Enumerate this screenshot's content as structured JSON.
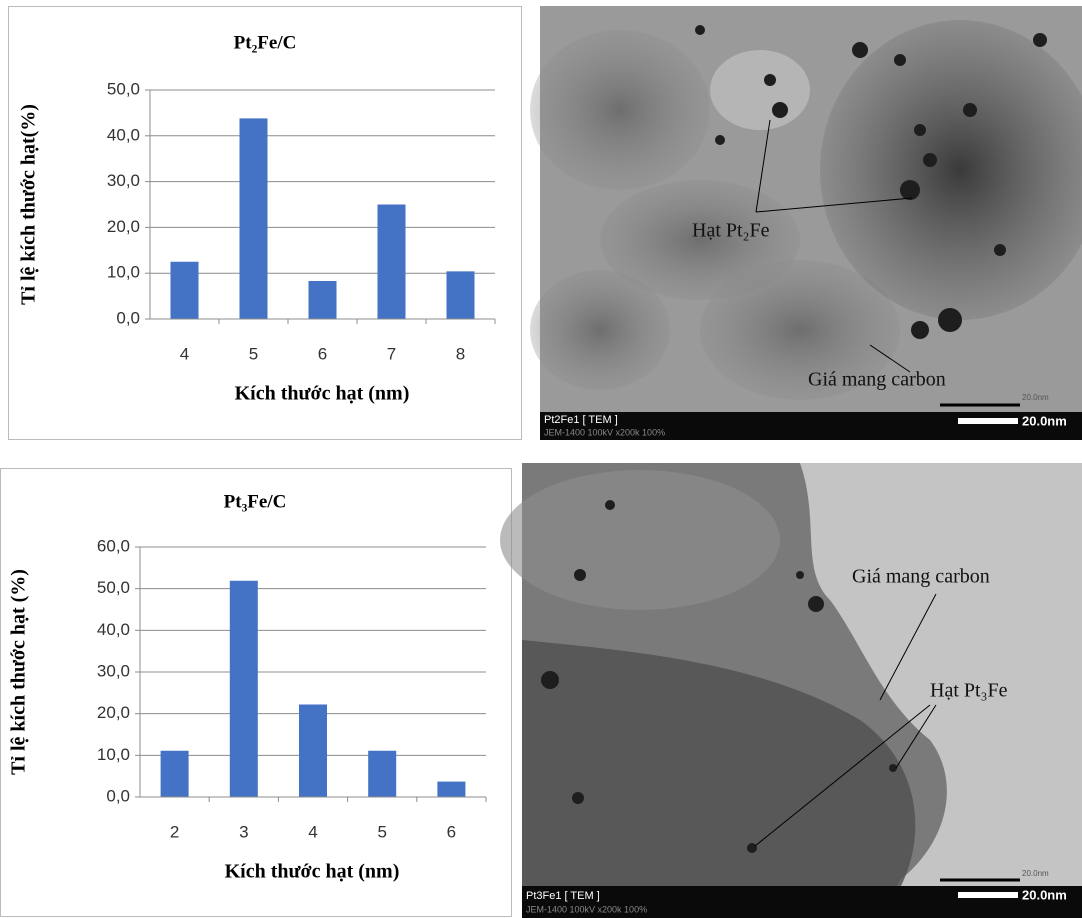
{
  "chart_data": [
    {
      "type": "bar",
      "title": "Pt₂Fe/C",
      "x_label": "Kích thước hạt (nm)",
      "y_label": "Tỉ lệ kích thước hạt(%)",
      "categories": [
        "4",
        "5",
        "6",
        "7",
        "8"
      ],
      "values": [
        12.5,
        43.8,
        8.3,
        25.0,
        10.4
      ],
      "color": "#4472c4",
      "ylim": [
        0,
        50
      ],
      "yticks": [
        {
          "value": 0,
          "label": "0,0"
        },
        {
          "value": 10,
          "label": "10,0"
        },
        {
          "value": 20,
          "label": "20,0"
        },
        {
          "value": 30,
          "label": "30,0"
        },
        {
          "value": 40,
          "label": "40,0"
        },
        {
          "value": 50,
          "label": "50,0"
        }
      ],
      "grid": true
    },
    {
      "type": "bar",
      "title": "Pt₃Fe/C",
      "x_label": "Kích thước hạt (nm)",
      "y_label": "Tỉ lệ kích thước hạt (%)",
      "categories": [
        "2",
        "3",
        "4",
        "5",
        "6"
      ],
      "values": [
        11.1,
        51.9,
        22.2,
        11.1,
        3.7
      ],
      "color": "#4472c4",
      "ylim": [
        0,
        60
      ],
      "yticks": [
        {
          "value": 0,
          "label": "0,0"
        },
        {
          "value": 10,
          "label": "10,0"
        },
        {
          "value": 20,
          "label": "20,0"
        },
        {
          "value": 30,
          "label": "30,0"
        },
        {
          "value": 40,
          "label": "40,0"
        },
        {
          "value": 50,
          "label": "50,0"
        },
        {
          "value": 60,
          "label": "60,0"
        }
      ],
      "grid": true
    }
  ],
  "images": [
    {
      "particle_label": "Hạt Pt₂Fe",
      "support_label": "Giá mang carbon",
      "caption": "Pt2Fe1 [ TEM ]",
      "instrument": "JEM-1400 100kV x200k 100%",
      "scale_small": "20.0nm",
      "scale": "20.0nm"
    },
    {
      "particle_label": "Hạt Pt₃Fe",
      "support_label": "Giá mang carbon",
      "caption": "Pt3Fe1 [ TEM ]",
      "instrument": "JEM-1400 100kV x200k 100%",
      "scale_small": "20.0nm",
      "scale": "20.0nm"
    }
  ]
}
